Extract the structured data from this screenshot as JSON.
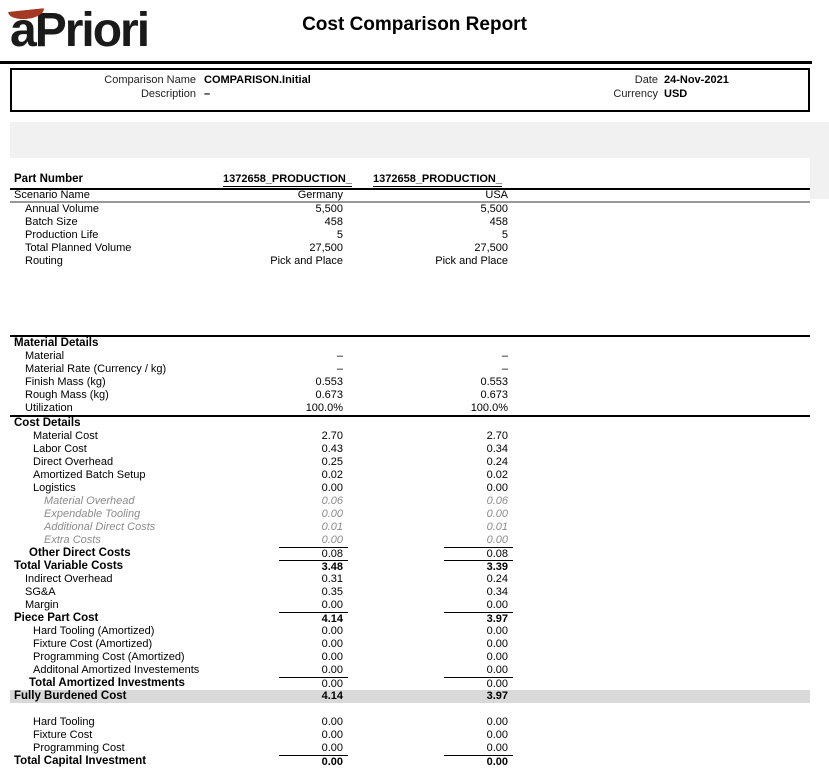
{
  "logo": {
    "text": "aPriori"
  },
  "title": "Cost Comparison Report",
  "header": {
    "comparison_name": {
      "label": "Comparison Name",
      "value": "COMPARISON.Initial"
    },
    "description": {
      "label": "Description",
      "value": "–"
    },
    "date": {
      "label": "Date",
      "value": "24-Nov-2021"
    },
    "currency": {
      "label": "Currency",
      "value": "USD"
    }
  },
  "table": {
    "part_number_label": "Part Number",
    "part_numbers": {
      "col1": "1372658_PRODUCTION_",
      "col2": "1372658_PRODUCTION_"
    },
    "rows": [
      {
        "label": "Scenario Name",
        "v1": "Germany",
        "v2": "USA",
        "ind": 0,
        "scen": true
      },
      {
        "label": "Annual Volume",
        "v1": "5,500",
        "v2": "5,500",
        "ind": 1
      },
      {
        "label": "Batch Size",
        "v1": "458",
        "v2": "458",
        "ind": 1
      },
      {
        "label": "Production Life",
        "v1": "5",
        "v2": "5",
        "ind": 1
      },
      {
        "label": "Total Planned Volume",
        "v1": "27,500",
        "v2": "27,500",
        "ind": 1
      },
      {
        "label": "Routing",
        "v1": "Pick and Place",
        "v2": "Pick and Place",
        "ind": 1
      },
      {
        "sp": 67
      },
      {
        "label": "Material Details",
        "sec": true
      },
      {
        "label": "Material",
        "v1": "–",
        "v2": "–",
        "ind": 1
      },
      {
        "label": "Material Rate (Currency / kg)",
        "v1": "–",
        "v2": "–",
        "ind": 1
      },
      {
        "label": "Finish Mass (kg)",
        "v1": "0.553",
        "v2": "0.553",
        "ind": 1
      },
      {
        "label": "Rough Mass (kg)",
        "v1": "0.673",
        "v2": "0.673",
        "ind": 1
      },
      {
        "label": "Utilization",
        "v1": "100.0%",
        "v2": "100.0%",
        "ind": 1
      },
      {
        "label": "Cost Details",
        "sec": true
      },
      {
        "label": "Material Cost",
        "v1": "2.70",
        "v2": "2.70",
        "ind": 2
      },
      {
        "label": "Labor Cost",
        "v1": "0.43",
        "v2": "0.34",
        "ind": 2
      },
      {
        "label": "Direct Overhead",
        "v1": "0.25",
        "v2": "0.24",
        "ind": 2
      },
      {
        "label": "Amortized Batch Setup",
        "v1": "0.02",
        "v2": "0.02",
        "ind": 2
      },
      {
        "label": "Logistics",
        "v1": "0.00",
        "v2": "0.00",
        "ind": 2
      },
      {
        "label": "Material Overhead",
        "v1": "0.06",
        "v2": "0.06",
        "ind": 3,
        "i": true
      },
      {
        "label": "Expendable Tooling",
        "v1": "0.00",
        "v2": "0.00",
        "ind": 3,
        "i": true
      },
      {
        "label": "Additional Direct Costs",
        "v1": "0.01",
        "v2": "0.01",
        "ind": 3,
        "i": true
      },
      {
        "label": "Extra Costs",
        "v1": "0.00",
        "v2": "0.00",
        "ind": 3,
        "i": true
      },
      {
        "label": "Other Direct Costs",
        "v1": "0.08",
        "v2": "0.08",
        "ind": 1.5,
        "b": true,
        "rt": true
      },
      {
        "label": "Total Variable Costs",
        "v1": "3.48",
        "v2": "3.39",
        "ind": 0,
        "b": true,
        "bv": true,
        "rt": true
      },
      {
        "label": "Indirect Overhead",
        "v1": "0.31",
        "v2": "0.24",
        "ind": 1
      },
      {
        "label": "SG&A",
        "v1": "0.35",
        "v2": "0.34",
        "ind": 1
      },
      {
        "label": "Margin",
        "v1": "0.00",
        "v2": "0.00",
        "ind": 1
      },
      {
        "label": "Piece Part Cost",
        "v1": "4.14",
        "v2": "3.97",
        "ind": 0,
        "b": true,
        "bv": true,
        "rt": true
      },
      {
        "label": "Hard Tooling (Amortized)",
        "v1": "0.00",
        "v2": "0.00",
        "ind": 2
      },
      {
        "label": "Fixture Cost (Amortized)",
        "v1": "0.00",
        "v2": "0.00",
        "ind": 2
      },
      {
        "label": "Programming Cost (Amortized)",
        "v1": "0.00",
        "v2": "0.00",
        "ind": 2
      },
      {
        "label": "Additonal Amortized Investements",
        "v1": "0.00",
        "v2": "0.00",
        "ind": 2
      },
      {
        "label": "Total Amortized Investments",
        "v1": "0.00",
        "v2": "0.00",
        "ind": 1.5,
        "b": true,
        "rt": true,
        "db": true
      },
      {
        "label": "Fully Burdened Cost",
        "v1": "4.14",
        "v2": "3.97",
        "ind": 0,
        "b": true,
        "bv": true,
        "bg": true
      },
      {
        "sp": 13
      },
      {
        "label": "Hard Tooling",
        "v1": "0.00",
        "v2": "0.00",
        "ind": 2
      },
      {
        "label": "Fixture Cost",
        "v1": "0.00",
        "v2": "0.00",
        "ind": 2
      },
      {
        "label": "Programming Cost",
        "v1": "0.00",
        "v2": "0.00",
        "ind": 2
      },
      {
        "label": "Total Capital Investment",
        "v1": "0.00",
        "v2": "0.00",
        "ind": 0,
        "b": true,
        "bv": true,
        "rt": true
      }
    ]
  },
  "colors": {
    "accent_red": "#a43a24",
    "band_gray": "#f1f1f1",
    "total_row_gray": "#d9d9d9"
  }
}
